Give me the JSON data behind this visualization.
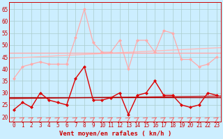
{
  "xlabel": "Vent moyen/en rafales ( kn/h )",
  "x": [
    0,
    1,
    2,
    3,
    4,
    5,
    6,
    7,
    8,
    9,
    10,
    11,
    12,
    13,
    14,
    15,
    16,
    17,
    18,
    19,
    20,
    21,
    22,
    23
  ],
  "rafales": [
    36,
    41,
    42,
    43,
    42,
    42,
    42,
    53,
    65,
    51,
    47,
    47,
    52,
    40,
    52,
    52,
    47,
    56,
    55,
    44,
    44,
    41,
    42,
    45
  ],
  "vent_moyen": [
    23,
    26,
    24,
    30,
    27,
    26,
    25,
    36,
    41,
    27,
    27,
    28,
    30,
    21,
    29,
    30,
    35,
    29,
    29,
    25,
    24,
    25,
    30,
    29
  ],
  "bg_color": "#cceeff",
  "grid_color": "#aacccc",
  "line_color_rafales": "#ffaaaa",
  "line_color_vent": "#dd0000",
  "reg_color_rafales_1": "#ffbbbb",
  "reg_color_rafales_2": "#ffaaaa",
  "reg_color_vent_1": "#cc2222",
  "reg_color_vent_2": "#aa0000",
  "marker_size": 2.5,
  "ylim": [
    18,
    68
  ],
  "yticks": [
    20,
    25,
    30,
    35,
    40,
    45,
    50,
    55,
    60,
    65
  ],
  "tick_fontsize": 5.5,
  "xlabel_fontsize": 6.5
}
